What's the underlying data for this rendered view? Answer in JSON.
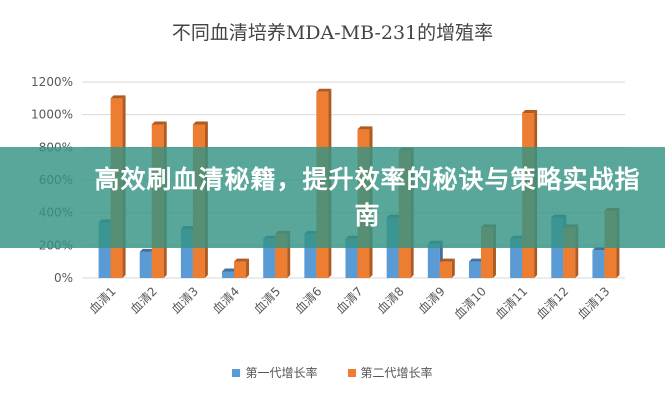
{
  "chart_data": {
    "type": "bar",
    "title": "不同血清培养MDA-MB-231的增殖率",
    "categories": [
      "血清1",
      "血清2",
      "血清3",
      "血清4",
      "血清5",
      "血清6",
      "血清7",
      "血清8",
      "血清9",
      "血清10",
      "血清11",
      "血清12",
      "血清13"
    ],
    "series": [
      {
        "name": "第一代增长率",
        "color": "#5b9bd5",
        "values": [
          340,
          160,
          300,
          40,
          240,
          270,
          240,
          370,
          210,
          100,
          240,
          370,
          170
        ]
      },
      {
        "name": "第二代增长率",
        "color": "#ed7d31",
        "values": [
          1100,
          940,
          940,
          100,
          270,
          1140,
          910,
          780,
          100,
          310,
          1010,
          310,
          410
        ]
      }
    ],
    "yticks": [
      "0%",
      "200%",
      "400%",
      "600%",
      "800%",
      "1000%",
      "1200%"
    ],
    "ylim": [
      0,
      1200
    ],
    "yunit": "%",
    "grid": true,
    "legend_position": "bottom"
  },
  "overlay": {
    "headline": "高效刷血清秘籍，提升效率的秘诀与策略实战指南",
    "color": "#349484"
  }
}
